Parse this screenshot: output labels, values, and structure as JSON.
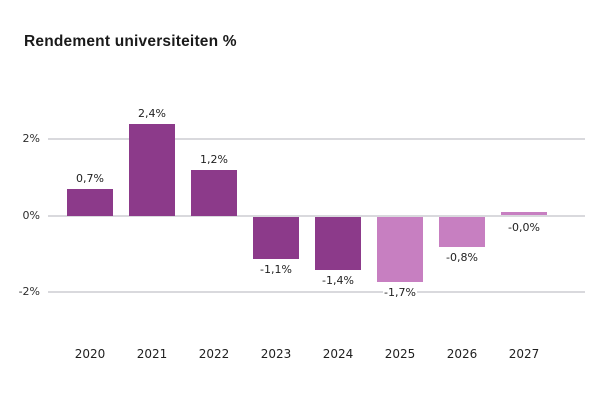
{
  "title": "Rendement universiteiten %",
  "colors": {
    "bar_dark": "#8c3a8a",
    "bar_light": "#c77fc1",
    "gridline": "#d9d9dd",
    "title_text": "#1a1a1a",
    "label_text": "#1f1f1f"
  },
  "chart_data": {
    "type": "bar",
    "title": "Rendement universiteiten %",
    "categories": [
      "2020",
      "2021",
      "2022",
      "2023",
      "2024",
      "2025",
      "2026",
      "2027"
    ],
    "values": [
      0.7,
      2.4,
      1.2,
      -1.1,
      -1.4,
      -1.7,
      -0.8,
      -0.0
    ],
    "value_labels": [
      "0,7%",
      "2,4%",
      "1,2%",
      "-1,1%",
      "-1,4%",
      "-1,7%",
      "-0,8%",
      "-0,0%"
    ],
    "shades": [
      "dark",
      "dark",
      "dark",
      "dark",
      "dark",
      "light",
      "light",
      "light"
    ],
    "y_ticks": [
      {
        "value": 2,
        "label": "2%"
      },
      {
        "value": 0,
        "label": "0%"
      },
      {
        "value": -2,
        "label": "-2%"
      }
    ],
    "ylim": [
      -2.6,
      3.1
    ],
    "xlabel": "",
    "ylabel": "",
    "grid": true,
    "legend": null
  }
}
